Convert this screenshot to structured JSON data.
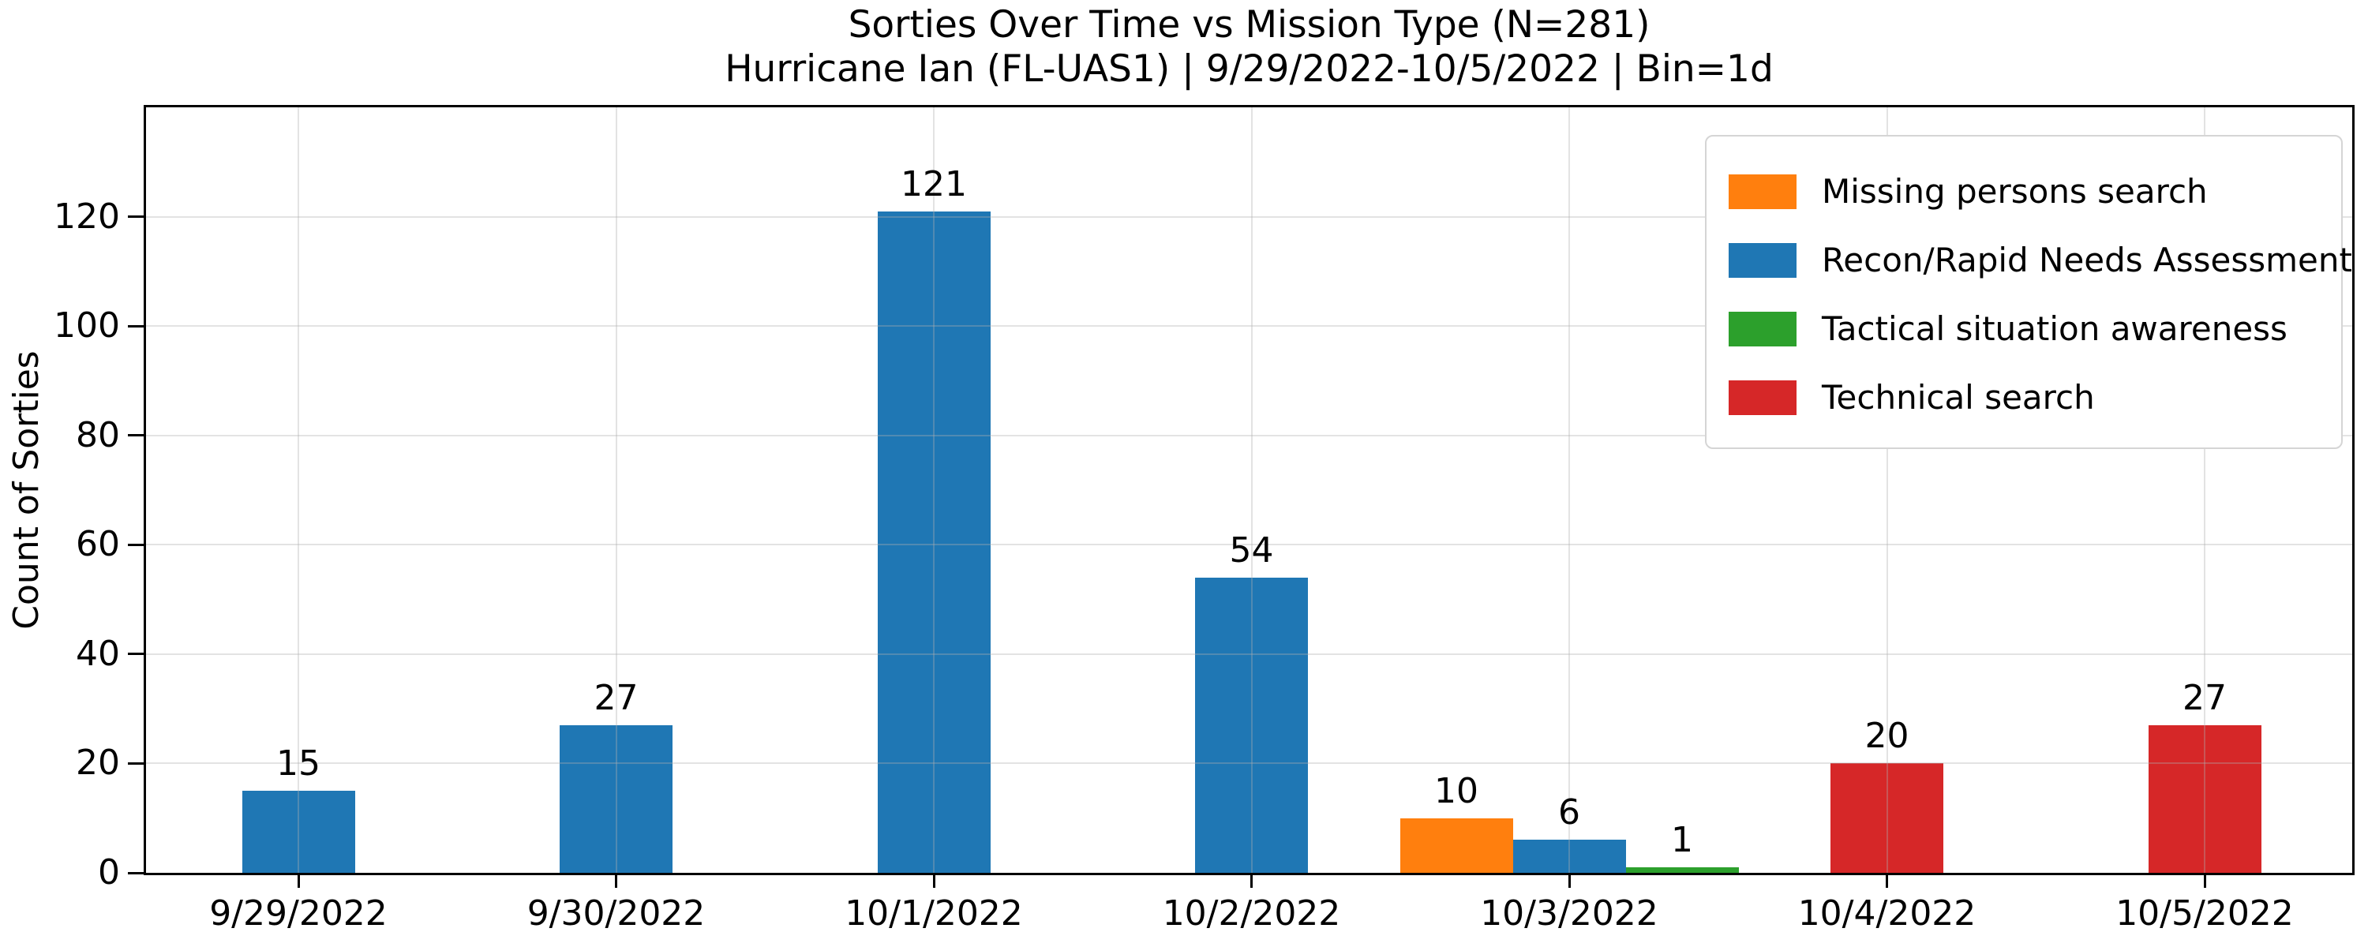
{
  "chart_data": {
    "type": "bar",
    "title": "Sorties Over Time vs Mission Type (N=281)",
    "subtitle": "Hurricane Ian (FL-UAS1) | 9/29/2022-10/5/2022 | Bin=1d",
    "xlabel": "",
    "ylabel": "Count of Sorties",
    "categories": [
      "9/29/2022",
      "9/30/2022",
      "10/1/2022",
      "10/2/2022",
      "10/3/2022",
      "10/4/2022",
      "10/5/2022"
    ],
    "y_ticks": [
      0,
      20,
      40,
      60,
      80,
      100,
      120
    ],
    "ylim": [
      0,
      140
    ],
    "grid": true,
    "grid_above_bars": true,
    "bar_value_labels": true,
    "legend_position": "upper right",
    "series": [
      {
        "name": "Missing persons search",
        "color": "#ff7f0e",
        "values": [
          null,
          null,
          null,
          null,
          10,
          null,
          null
        ]
      },
      {
        "name": "Recon/Rapid Needs Assessment",
        "color": "#1f77b4",
        "values": [
          15,
          27,
          121,
          54,
          6,
          null,
          null
        ]
      },
      {
        "name": "Tactical situation awareness",
        "color": "#2ca02c",
        "values": [
          null,
          null,
          null,
          null,
          1,
          null,
          null
        ]
      },
      {
        "name": "Technical search",
        "color": "#d62728",
        "values": [
          null,
          null,
          null,
          null,
          null,
          20,
          27
        ]
      }
    ]
  }
}
